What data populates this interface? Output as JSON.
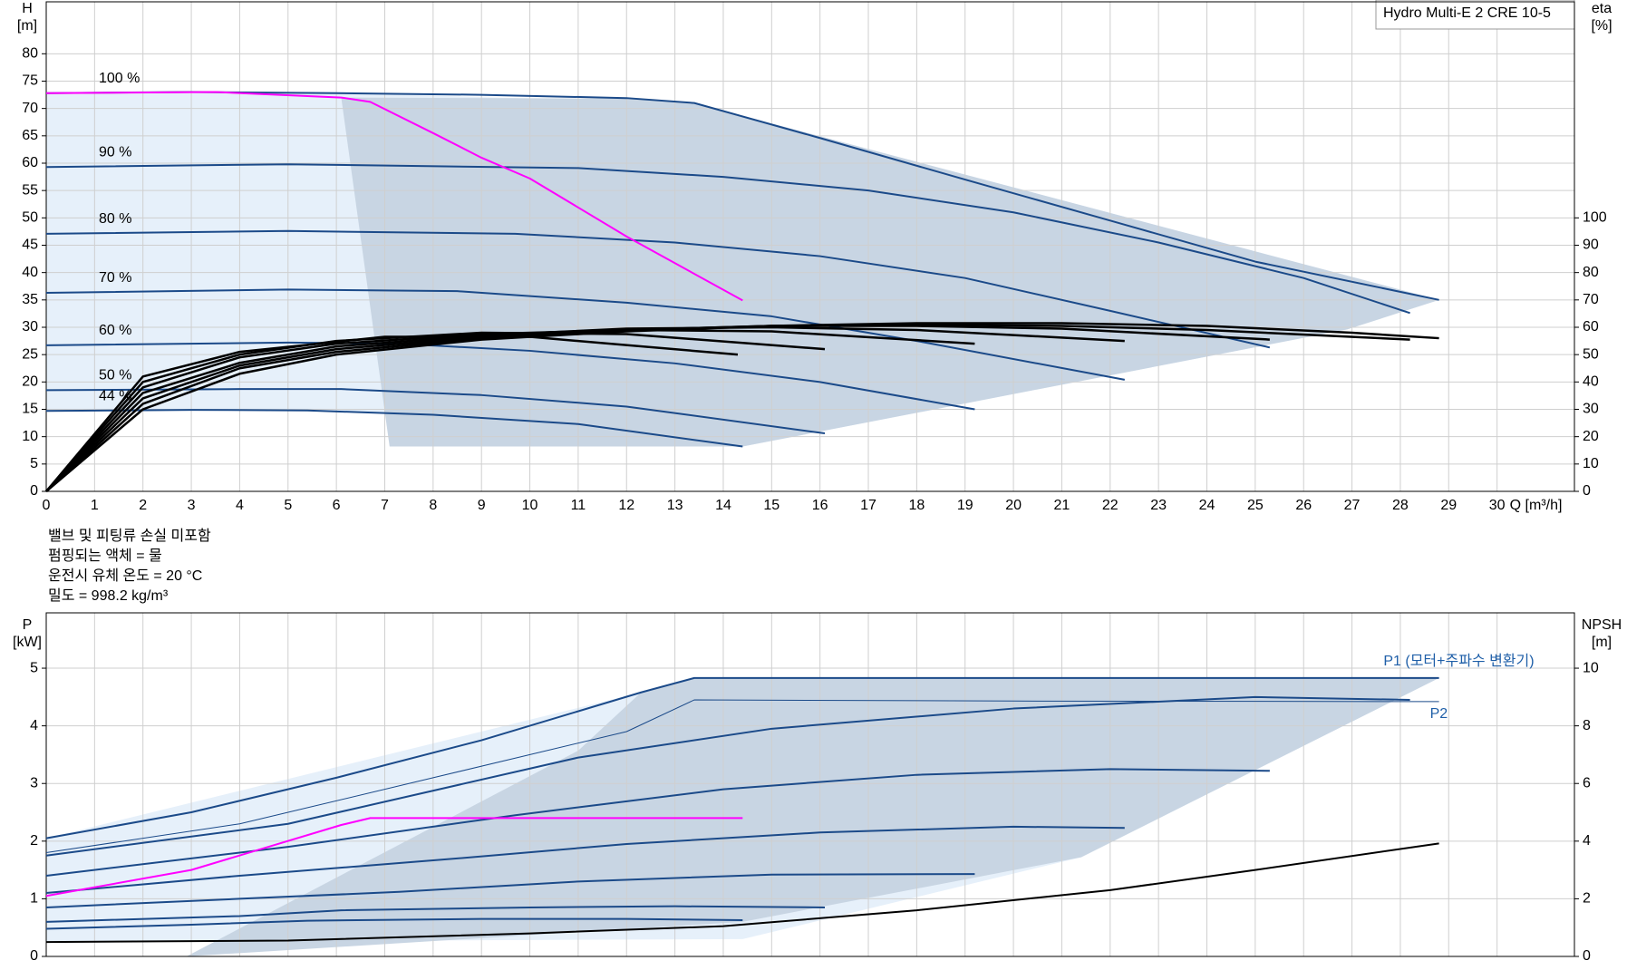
{
  "title_box": "Hydro Multi-E 2 CRE 10-5",
  "notes": [
    "밸브 및 피팅류 손실 미포함",
    "펌핑되는 액체 = 물",
    "운전시 유체 온도 = 20 °C",
    "밀도 =  998.2 kg/m³"
  ],
  "chart_data": [
    {
      "type": "line",
      "x_label": "Q [m³/h]",
      "y_label": "H",
      "y_unit": "[m]",
      "y2_label": "eta",
      "y2_unit": "[%]",
      "xlim": [
        0,
        31.6
      ],
      "xticks": [
        0,
        1,
        2,
        3,
        4,
        5,
        6,
        7,
        8,
        9,
        10,
        11,
        12,
        13,
        14,
        15,
        16,
        17,
        18,
        19,
        20,
        21,
        22,
        23,
        24,
        25,
        26,
        27,
        28,
        29,
        30
      ],
      "xtick_labels": true,
      "ylim": [
        0,
        89.5
      ],
      "yticks": [
        0,
        5,
        10,
        15,
        20,
        25,
        30,
        35,
        40,
        45,
        50,
        55,
        60,
        65,
        70,
        75,
        80
      ],
      "y2lim": [
        0,
        179
      ],
      "y2ticks": [
        0,
        10,
        20,
        30,
        40,
        50,
        60,
        70,
        80,
        90,
        100
      ],
      "grid": true,
      "areas": [
        {
          "color": "#e6f0fa",
          "x": [
            0,
            6,
            13.4,
            28.8,
            26.9,
            14.4,
            11,
            8,
            5.4,
            3,
            0
          ],
          "values": [
            72.8,
            72.8,
            71,
            35,
            29.6,
            8.2,
            12.3,
            14,
            14.8,
            14.9,
            14.7
          ]
        },
        {
          "color": "#c8d5e3",
          "x": [
            6.1,
            12.3,
            13.4,
            28.8,
            26.9,
            14.4,
            7.1
          ],
          "values": [
            72,
            71.8,
            71,
            35,
            29.6,
            8.2,
            8.2
          ]
        }
      ],
      "series": [
        {
          "name": "100 %",
          "color": "#1b4a89",
          "width": 2,
          "label_pos": "start",
          "x": [
            0,
            3,
            6,
            9,
            12,
            13.4,
            16,
            19,
            22,
            25,
            28.8
          ],
          "values": [
            72.8,
            73,
            72.8,
            72.5,
            71.9,
            71,
            64.6,
            57,
            49.5,
            42,
            35
          ]
        },
        {
          "name": "90 %",
          "color": "#1b4a89",
          "width": 2,
          "label_pos": "start",
          "x": [
            0,
            5,
            11,
            14,
            17,
            20,
            23,
            26,
            28.2
          ],
          "values": [
            59.3,
            59.8,
            59.1,
            57.5,
            55,
            51,
            45.5,
            39,
            32.6
          ]
        },
        {
          "name": "80 %",
          "color": "#1b4a89",
          "width": 2,
          "label_pos": "start",
          "x": [
            0,
            5,
            9.7,
            13,
            16,
            19,
            22,
            25.3
          ],
          "values": [
            47.1,
            47.6,
            47.1,
            45.5,
            43,
            39,
            33,
            26.3
          ]
        },
        {
          "name": "70 %",
          "color": "#1b4a89",
          "width": 2,
          "label_pos": "start",
          "x": [
            0,
            5,
            8.5,
            12,
            15,
            18,
            22.3
          ],
          "values": [
            36.3,
            36.9,
            36.6,
            34.5,
            32,
            27.5,
            20.4
          ]
        },
        {
          "name": "60 %",
          "color": "#1b4a89",
          "width": 2,
          "label_pos": "start",
          "x": [
            0,
            5,
            7.3,
            10,
            13,
            16,
            19.2
          ],
          "values": [
            26.7,
            27.2,
            27,
            25.7,
            23.4,
            20,
            15
          ]
        },
        {
          "name": "50 %",
          "color": "#1b4a89",
          "width": 2,
          "label_pos": "start",
          "x": [
            0,
            4,
            6.1,
            9,
            12,
            16.1
          ],
          "values": [
            18.5,
            18.7,
            18.7,
            17.6,
            15.5,
            10.6
          ]
        },
        {
          "name": "44 %",
          "color": "#1b4a89",
          "width": 2,
          "label_pos": "start",
          "x": [
            0,
            3,
            5.4,
            8,
            11,
            14.4
          ],
          "values": [
            14.7,
            14.9,
            14.8,
            14,
            12.3,
            8.2
          ]
        },
        {
          "color": "#ff00ff",
          "width": 2,
          "x": [
            0,
            3.5,
            6.1,
            6.7,
            8,
            9,
            10,
            12,
            14.4
          ],
          "values": [
            72.8,
            73,
            72,
            71.2,
            65.5,
            61,
            57.2,
            46.6,
            34.9
          ]
        },
        {
          "color": "#000000",
          "width": 2.5,
          "axis": "y2",
          "x": [
            0,
            2,
            4,
            6,
            9,
            12,
            15,
            18,
            21,
            24,
            27,
            28.8
          ],
          "values": [
            0,
            30,
            43,
            50,
            55.5,
            58.5,
            60.5,
            61.5,
            61.5,
            60.5,
            58,
            56
          ]
        },
        {
          "color": "#000000",
          "width": 2.5,
          "axis": "y2",
          "x": [
            0,
            2,
            4,
            6,
            9,
            12,
            15,
            18,
            21,
            24,
            28.2
          ],
          "values": [
            0,
            32,
            45,
            51,
            56,
            59,
            60.5,
            61,
            60.5,
            59,
            55.5
          ]
        },
        {
          "color": "#000000",
          "width": 2.5,
          "axis": "y2",
          "x": [
            0,
            2,
            4,
            6,
            9,
            12,
            15,
            18,
            21,
            25.3
          ],
          "values": [
            0,
            34,
            46,
            52,
            56.5,
            59,
            60.5,
            60.5,
            59.5,
            55.5
          ]
        },
        {
          "color": "#000000",
          "width": 2.5,
          "axis": "y2",
          "x": [
            0,
            2,
            4,
            6,
            9,
            12,
            15,
            18,
            22.3
          ],
          "values": [
            0,
            36,
            47,
            53,
            57,
            59.5,
            60,
            59,
            55
          ]
        },
        {
          "color": "#000000",
          "width": 2.5,
          "axis": "y2",
          "x": [
            0,
            2,
            4,
            6,
            9,
            12,
            15,
            19.2
          ],
          "values": [
            0,
            38,
            49,
            54,
            57.5,
            59,
            58.5,
            54
          ]
        },
        {
          "color": "#000000",
          "width": 2.5,
          "axis": "y2",
          "x": [
            0,
            2,
            4,
            6,
            9,
            12,
            16.1
          ],
          "values": [
            0,
            40,
            50,
            55,
            58,
            57.5,
            52
          ]
        },
        {
          "color": "#000000",
          "width": 2.5,
          "axis": "y2",
          "x": [
            0,
            2,
            4,
            7,
            10,
            14.3
          ],
          "values": [
            0,
            42,
            51,
            56.5,
            56.5,
            50
          ]
        }
      ]
    },
    {
      "type": "line",
      "y_label": "P",
      "y_unit": "[kW]",
      "y2_label": "NPSH",
      "y2_unit": "[m]",
      "xlim": [
        0,
        31.6
      ],
      "xticks": [
        0,
        1,
        2,
        3,
        4,
        5,
        6,
        7,
        8,
        9,
        10,
        11,
        12,
        13,
        14,
        15,
        16,
        17,
        18,
        19,
        20,
        21,
        22,
        23,
        24,
        25,
        26,
        27,
        28,
        29,
        30
      ],
      "xtick_labels": false,
      "ylim": [
        0,
        5.96
      ],
      "yticks": [
        0,
        1,
        2,
        3,
        4,
        5
      ],
      "y2lim": [
        0,
        11.92
      ],
      "y2ticks": [
        0,
        2,
        4,
        6,
        8,
        10
      ],
      "grid": true,
      "areas": [
        {
          "color": "#e6f0fa",
          "x": [
            0,
            12.3,
            13.4,
            28.8,
            21.4,
            14.4,
            0
          ],
          "values": [
            2.05,
            4.58,
            4.83,
            4.83,
            1.72,
            0.3,
            0.25
          ]
        },
        {
          "color": "#c8d5e3",
          "x": [
            2.9,
            11,
            12.3,
            13.4,
            28.8,
            21.4,
            14.4
          ],
          "values": [
            0,
            3.57,
            4.58,
            4.83,
            4.83,
            1.72,
            0.6
          ]
        }
      ],
      "series": [
        {
          "name": "P1 (모터+주파수 변환기)",
          "color": "#1b4a89",
          "label_color": "#1f5fa8",
          "width": 2,
          "label_pos": "end-above",
          "x": [
            0,
            3,
            6,
            9,
            12.3,
            13.4,
            20,
            28.8
          ],
          "values": [
            2.05,
            2.5,
            3.1,
            3.75,
            4.58,
            4.83,
            4.83,
            4.83
          ]
        },
        {
          "name": "P2",
          "color": "#1b4a89",
          "label_color": "#1f5fa8",
          "width": 1,
          "label_pos": "end-below",
          "x": [
            0,
            4,
            8,
            12,
            13.4,
            20,
            28.8
          ],
          "values": [
            1.8,
            2.3,
            3.1,
            3.9,
            4.45,
            4.43,
            4.42
          ]
        },
        {
          "color": "#1b4a89",
          "width": 2,
          "x": [
            0,
            5,
            11,
            15,
            20,
            25,
            28.2
          ],
          "values": [
            1.75,
            2.3,
            3.45,
            3.95,
            4.3,
            4.5,
            4.45
          ]
        },
        {
          "color": "#1b4a89",
          "width": 2,
          "x": [
            0,
            5,
            9.7,
            14,
            18,
            22,
            25.3
          ],
          "values": [
            1.4,
            1.9,
            2.45,
            2.9,
            3.15,
            3.25,
            3.22
          ]
        },
        {
          "color": "#1b4a89",
          "width": 2,
          "x": [
            0,
            4,
            8.5,
            12,
            16,
            20,
            22.3
          ],
          "values": [
            1.1,
            1.4,
            1.7,
            1.95,
            2.15,
            2.25,
            2.23
          ]
        },
        {
          "color": "#1b4a89",
          "width": 2,
          "x": [
            0,
            4,
            7.3,
            11,
            15,
            19.2
          ],
          "values": [
            0.85,
            1,
            1.12,
            1.3,
            1.42,
            1.43
          ]
        },
        {
          "color": "#1b4a89",
          "width": 2,
          "x": [
            0,
            4,
            6.1,
            10,
            13,
            16.1
          ],
          "values": [
            0.6,
            0.7,
            0.8,
            0.85,
            0.87,
            0.85
          ]
        },
        {
          "color": "#1b4a89",
          "width": 2,
          "x": [
            0,
            3,
            5.4,
            9,
            12,
            14.4
          ],
          "values": [
            0.48,
            0.55,
            0.62,
            0.65,
            0.65,
            0.63
          ]
        },
        {
          "color": "#ff00ff",
          "width": 2,
          "x": [
            0,
            3,
            6.1,
            6.7,
            14.4
          ],
          "values": [
            1.05,
            1.5,
            2.28,
            2.4,
            2.4
          ]
        },
        {
          "color": "#000000",
          "width": 2,
          "axis": "y2",
          "x": [
            0,
            5,
            10,
            14,
            18,
            22,
            25,
            28.8
          ],
          "values": [
            0.5,
            0.55,
            0.8,
            1.05,
            1.6,
            2.3,
            3,
            3.92
          ]
        }
      ]
    }
  ]
}
